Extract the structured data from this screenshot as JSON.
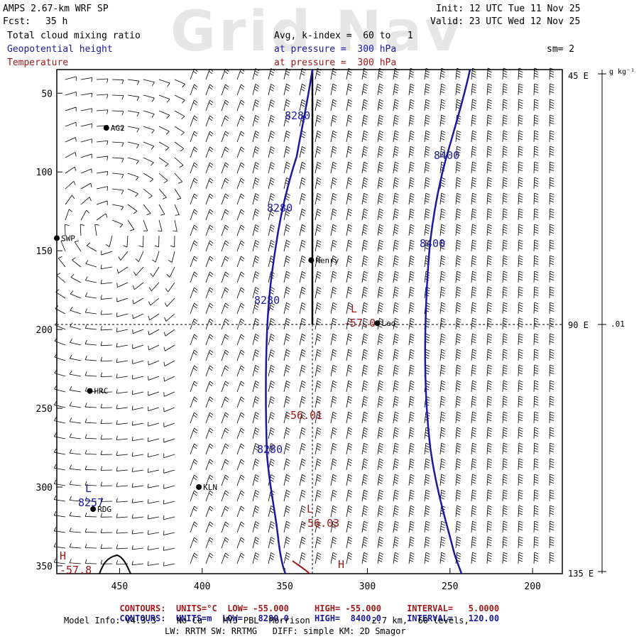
{
  "header": {
    "watermark": "Grid Nav",
    "model": "AMPS 2.67-km WRF SP",
    "fcst_label": "Fcst:",
    "fcst_value": "35 h",
    "init": "Init: 12 UTC Tue 11 Nov 25",
    "valid": "Valid: 23 UTC Wed 12 Nov 25",
    "field1": "Total cloud mixing ratio",
    "field1_avg": "Avg, k-index =  60 to   1",
    "field2": "Geopotential height",
    "field2_level": "at pressure =  300 hPa",
    "smooth": "sm= 2",
    "field3": "Temperature",
    "field3_level": "at pressure =  300 hPa"
  },
  "colors": {
    "height": "#1a1aa0",
    "temperature": "#a01818",
    "barbs": "#000000",
    "background": "#ffffff"
  },
  "chart_data": {
    "type": "cross-section",
    "x_ticks": [
      "450",
      "400",
      "350",
      "300",
      "250",
      "200"
    ],
    "y_ticks": [
      "50",
      "100",
      "150",
      "200",
      "250",
      "300",
      "350"
    ],
    "y_right_ticks": [
      "45 E",
      "90 E",
      "135 E"
    ],
    "colorbar": {
      "unit": "g kg⁻¹",
      "label": ".01"
    },
    "height_contour_labels": [
      "8280",
      "8280",
      "8280",
      "8280",
      "8400",
      "8400"
    ],
    "height_low": {
      "marker": "L",
      "value": "8257"
    },
    "temperature_labels": [
      "-57.0",
      "-56.01",
      "-56.03",
      "-57.8"
    ],
    "temperature_markers": [
      "L",
      "L",
      "H",
      "H"
    ],
    "stations": [
      {
        "name": "AG2",
        "x": 458,
        "y": 72
      },
      {
        "name": "SWP",
        "x": 488,
        "y": 142
      },
      {
        "name": "Henry",
        "x": 334,
        "y": 156
      },
      {
        "name": "Leo",
        "x": 294,
        "y": 196
      },
      {
        "name": "HRC",
        "x": 468,
        "y": 239
      },
      {
        "name": "KLN",
        "x": 402,
        "y": 300
      },
      {
        "name": "RDG",
        "x": 466,
        "y": 314
      }
    ],
    "grid_ranges": {
      "x": [
        488,
        182
      ],
      "y": [
        35,
        355
      ]
    }
  },
  "legend": {
    "temp": {
      "contours": "CONTOURS:",
      "units": "UNITS=°C",
      "low": "LOW= -55.000",
      "high": "HIGH= -55.000",
      "interval": "INTERVAL=   5.0000"
    },
    "height": {
      "contours": "CONTOURS:",
      "units": "UNITS=m",
      "low": "LOW=   8280.0",
      "high": "HIGH=  8400.0",
      "interval": "INTERVAL=   120.00"
    }
  },
  "footer": {
    "line1": "Model Info: V4.3.3    No Cu    MYJ PBL  Morrison            2.7 km,  60 levels,",
    "line2": "LW: RRTM SW: RRTMG   DIFF: simple KM: 2D Smagor"
  }
}
